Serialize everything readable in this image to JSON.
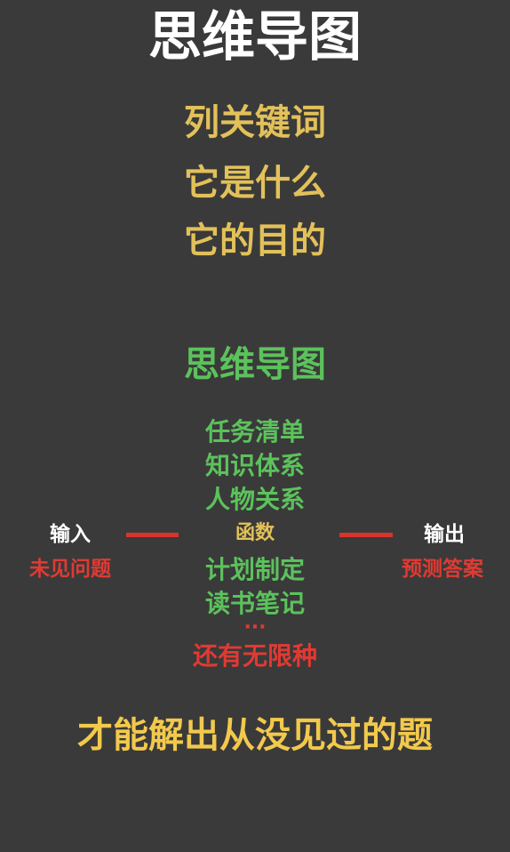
{
  "title": "思维导图",
  "keywords": [
    "列关键词",
    "它是什么",
    "它的目的"
  ],
  "mindmap_title": "思维导图",
  "green_items_top": [
    "任务清单",
    "知识体系",
    "人物关系"
  ],
  "function_label": "函数",
  "green_items_bottom": [
    "计划制定",
    "读书笔记"
  ],
  "ellipsis": "···",
  "more_kinds": "还有无限种",
  "input": {
    "label": "输入",
    "sub": "未见问题"
  },
  "output": {
    "label": "输出",
    "sub": "预测答案"
  },
  "conclusion": "才能解出从没见过的题",
  "colors": {
    "background": "#3a3a3a",
    "title": "#ffffff",
    "keyword": "#e2c15a",
    "green": "#5cc25c",
    "red": "#e03a33",
    "conclusion": "#f2c94c"
  }
}
